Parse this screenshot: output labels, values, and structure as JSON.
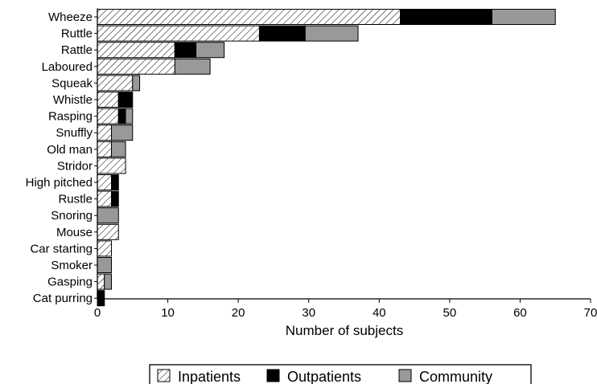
{
  "chart_data": {
    "type": "bar",
    "orientation": "horizontal",
    "stacked": true,
    "categories": [
      "Wheeze",
      "Ruttle",
      "Rattle",
      "Laboured",
      "Squeak",
      "Whistle",
      "Rasping",
      "Snuffly",
      "Old man",
      "Stridor",
      "High pitched",
      "Rustle",
      "Snoring",
      "Mouse",
      "Car starting",
      "Smoker",
      "Gasping",
      "Cat purring"
    ],
    "series": [
      {
        "name": "Inpatients",
        "values": [
          43,
          23,
          11,
          11,
          5,
          3,
          3,
          2,
          2,
          4,
          2,
          2,
          0,
          3,
          2,
          0,
          1,
          0
        ]
      },
      {
        "name": "Outpatients",
        "values": [
          13,
          6.5,
          3,
          0,
          0,
          2,
          1,
          0,
          0,
          0,
          1,
          1,
          0,
          0,
          0,
          0,
          0,
          1
        ]
      },
      {
        "name": "Community",
        "values": [
          9,
          7.5,
          4,
          5,
          1,
          0,
          1,
          3,
          2,
          0,
          0,
          0,
          3,
          0,
          0,
          2,
          1,
          0
        ]
      }
    ],
    "xlabel": "Number of subjects",
    "xlim": [
      0,
      70
    ],
    "xticks": [
      0,
      10,
      20,
      30,
      40,
      50,
      60,
      70
    ],
    "grid": false,
    "legend_position": "bottom",
    "colors": {
      "Inpatients": "hatched",
      "Outpatients": "#000000",
      "Community": "#999999"
    }
  }
}
